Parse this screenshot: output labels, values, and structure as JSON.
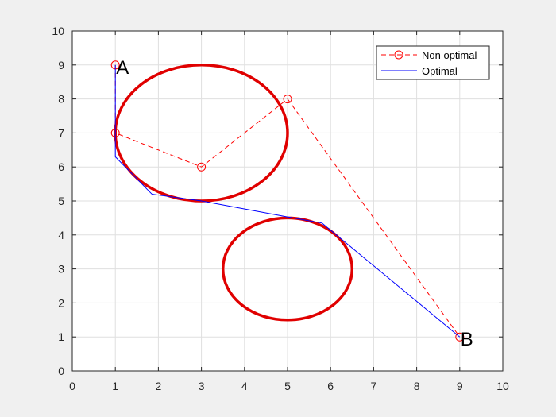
{
  "chart_data": {
    "type": "line",
    "title": "",
    "xlabel": "",
    "ylabel": "",
    "xlim": [
      0,
      10
    ],
    "ylim": [
      0,
      10
    ],
    "xticks": [
      "0",
      "1",
      "2",
      "3",
      "4",
      "5",
      "6",
      "7",
      "8",
      "9",
      "10"
    ],
    "yticks": [
      "0",
      "1",
      "2",
      "3",
      "4",
      "5",
      "6",
      "7",
      "8",
      "9",
      "10"
    ],
    "grid": true,
    "legend_position": "top-right",
    "series": [
      {
        "name": "Non optimal",
        "style": "dashed-circle-markers",
        "color": "#ff0000",
        "x": [
          1,
          1,
          3,
          5,
          9
        ],
        "y": [
          9,
          7,
          6,
          8,
          1
        ]
      },
      {
        "name": "Optimal",
        "style": "solid",
        "color": "#0000ff",
        "x": [
          1,
          1,
          1.85,
          3,
          5,
          5.8,
          9
        ],
        "y": [
          9,
          6.3,
          5.2,
          5.0,
          4.53,
          4.35,
          1
        ]
      }
    ],
    "obstacles": [
      {
        "cx": 3,
        "cy": 7,
        "rx": 2,
        "ry": 2,
        "color": "#e00000"
      },
      {
        "cx": 5,
        "cy": 3,
        "rx": 1.5,
        "ry": 1.5,
        "color": "#e00000"
      }
    ],
    "annotations": [
      {
        "text": "A",
        "x": 1,
        "y": 9
      },
      {
        "text": "B",
        "x": 9,
        "y": 1
      }
    ]
  }
}
